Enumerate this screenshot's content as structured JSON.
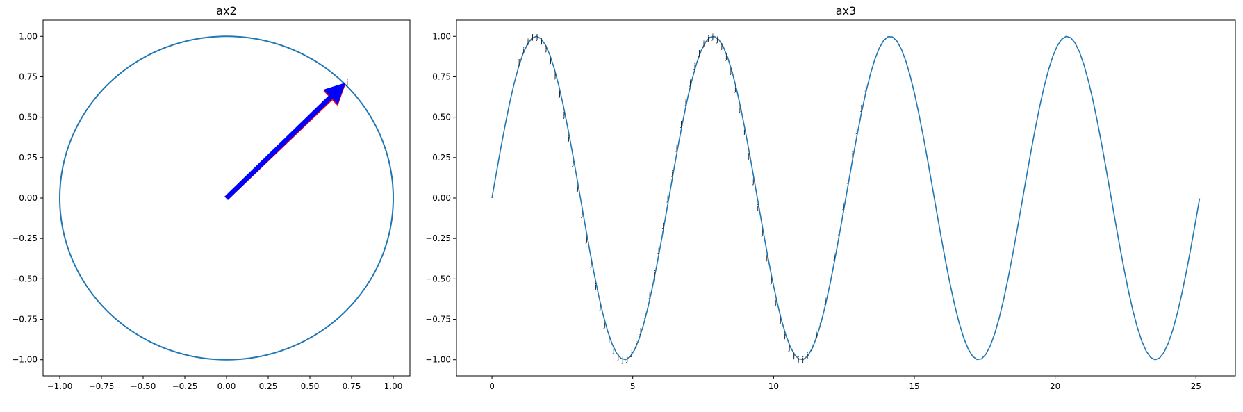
{
  "figure": {
    "background": "#ffffff"
  },
  "chart_data": [
    {
      "type": "line",
      "title": "ax2",
      "xlabel": "",
      "ylabel": "",
      "xlim": [
        -1.1,
        1.1
      ],
      "ylim": [
        -1.1,
        1.1
      ],
      "x_ticks": [
        -1.0,
        -0.75,
        -0.5,
        -0.25,
        0.0,
        0.25,
        0.5,
        0.75,
        1.0
      ],
      "x_tick_labels": [
        "−1.00",
        "−0.75",
        "−0.50",
        "−0.25",
        "0.00",
        "0.25",
        "0.50",
        "0.75",
        "1.00"
      ],
      "y_ticks": [
        -1.0,
        -0.75,
        -0.5,
        -0.25,
        0.0,
        0.25,
        0.5,
        0.75,
        1.0
      ],
      "y_tick_labels": [
        "−1.00",
        "−0.75",
        "−0.50",
        "−0.25",
        "0.00",
        "0.25",
        "0.50",
        "0.75",
        "1.00"
      ],
      "grid": false,
      "series": [
        {
          "kind": "unit-circle",
          "description": "x = cos(t), y = sin(t), t in [0, 2pi]",
          "color": "#1f77b4"
        }
      ],
      "arrows": [
        {
          "from": [
            0,
            0
          ],
          "to": [
            0.71,
            0.7
          ],
          "color": "#ff0000"
        },
        {
          "from": [
            0,
            0
          ],
          "to": [
            0.71,
            0.71
          ],
          "color": "#0000ff"
        }
      ],
      "annotations": [
        {
          "text": "j",
          "x": 0.71,
          "y": 0.71
        }
      ]
    },
    {
      "type": "line",
      "title": "ax3",
      "xlabel": "",
      "ylabel": "",
      "xlim": [
        -1.26,
        26.4
      ],
      "ylim": [
        -1.1,
        1.1
      ],
      "x_ticks": [
        0,
        5,
        10,
        15,
        20,
        25
      ],
      "x_tick_labels": [
        "0",
        "5",
        "10",
        "15",
        "20",
        "25"
      ],
      "y_ticks": [
        -1.0,
        -0.75,
        -0.5,
        -0.25,
        0.0,
        0.25,
        0.5,
        0.75,
        1.0
      ],
      "y_tick_labels": [
        "−1.00",
        "−0.75",
        "−0.50",
        "−0.25",
        "0.00",
        "0.25",
        "0.50",
        "0.75",
        "1.00"
      ],
      "grid": false,
      "series": [
        {
          "kind": "sine",
          "description": "y = sin(x), x in [0, 8pi], 160 samples",
          "x_start": 0,
          "x_end": 25.13,
          "color": "#1f77b4"
        }
      ],
      "annotation_text": "j",
      "annotation_x": [
        1.0,
        1.16,
        1.32,
        1.48,
        1.64,
        1.8,
        1.96,
        2.12,
        2.28,
        2.44,
        2.6,
        2.76,
        2.92,
        3.08,
        3.24,
        3.4,
        3.56,
        3.72,
        3.88,
        4.04,
        4.2,
        4.36,
        4.52,
        4.68,
        4.84,
        5.0,
        5.16,
        5.32,
        5.48,
        5.64,
        5.8,
        5.96,
        6.12,
        6.28,
        6.44,
        6.6,
        6.76,
        6.92,
        7.08,
        7.24,
        7.4,
        7.56,
        7.72,
        7.88,
        8.04,
        8.2,
        8.36,
        8.52,
        8.68,
        8.84,
        9.0,
        9.16,
        9.32,
        9.48,
        9.64,
        9.8,
        9.96,
        10.12,
        10.28,
        10.44,
        10.6,
        10.76,
        10.92,
        11.08,
        11.24,
        11.4,
        11.56,
        11.72,
        11.88,
        12.04,
        12.2,
        12.36,
        12.52,
        12.68,
        12.84,
        13.0,
        13.16,
        13.32
      ]
    }
  ]
}
